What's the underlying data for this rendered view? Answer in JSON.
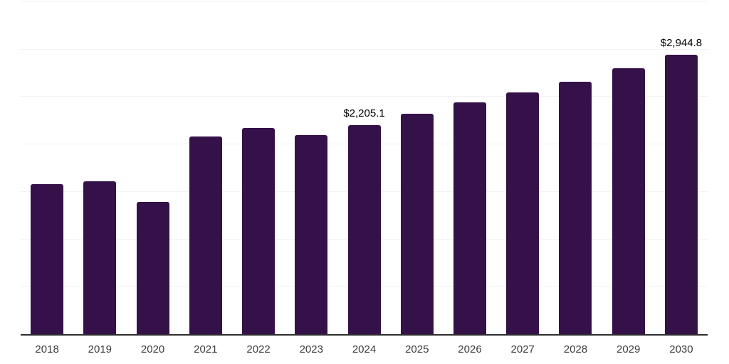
{
  "chart_data": {
    "type": "bar",
    "title": "",
    "xlabel": "",
    "ylabel": "",
    "categories": [
      "2018",
      "2019",
      "2020",
      "2021",
      "2022",
      "2023",
      "2024",
      "2025",
      "2026",
      "2027",
      "2028",
      "2029",
      "2030"
    ],
    "values": [
      1580,
      1610,
      1395,
      2080,
      2175,
      2095,
      2205.1,
      2325,
      2445,
      2550,
      2660,
      2800,
      2944.8
    ],
    "data_labels": {
      "2024": "$2,205.1",
      "2030": "$2,944.8"
    },
    "ylim": [
      0,
      3500
    ],
    "gridline_step": 500,
    "grid": "horizontal",
    "legend": "none",
    "colors": {
      "bar": "#351149",
      "axis_line": "#2e2e2e",
      "gridline": "#f3f3f3",
      "tick_label": "#3c3c3c",
      "data_label": "#000000",
      "background": "#ffffff"
    }
  }
}
